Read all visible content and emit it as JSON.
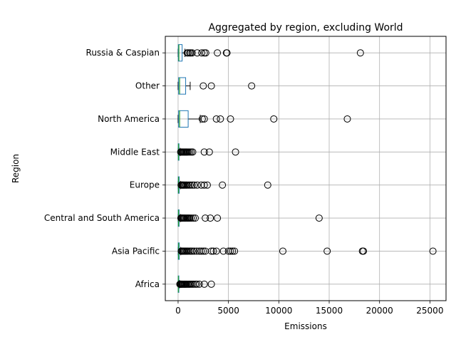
{
  "chart_data": {
    "type": "boxplot",
    "orientation": "horizontal",
    "title": "Aggregated by region, excluding World",
    "xlabel": "Emissions",
    "ylabel": "Region",
    "xlim": [
      -1270,
      26600
    ],
    "xticks": [
      0,
      5000,
      10000,
      15000,
      20000,
      25000
    ],
    "xtick_labels": [
      "0",
      "5000",
      "10000",
      "15000",
      "20000",
      "25000"
    ],
    "grid": true,
    "colors": {
      "box": "#1f77b4",
      "median": "#2ca02c",
      "whisker": "#000000",
      "grid": "#b0b0b0",
      "flier": "#000000"
    },
    "categories": [
      "Africa",
      "Asia Pacific",
      "Central and South America",
      "Europe",
      "Middle East",
      "North America",
      "Other",
      "Russia & Caspian"
    ],
    "series": [
      {
        "category": "Africa",
        "whislo": 0,
        "q1": 5,
        "median": 25,
        "q3": 60,
        "whishi": 140,
        "fliers": [
          180,
          230,
          290,
          350,
          420,
          500,
          580,
          650,
          720,
          800,
          900,
          1000,
          1100,
          1200,
          1350,
          1500,
          1700,
          1850,
          2100,
          2600,
          3300
        ]
      },
      {
        "category": "Asia Pacific",
        "whislo": 0,
        "q1": 10,
        "median": 50,
        "q3": 120,
        "whishi": 260,
        "fliers": [
          320,
          400,
          480,
          560,
          650,
          750,
          850,
          950,
          1100,
          1250,
          1400,
          1600,
          1850,
          2100,
          2300,
          2500,
          2700,
          3300,
          3500,
          3800,
          4500,
          5000,
          5200,
          5400,
          5600,
          10400,
          14800,
          18300,
          18400,
          25300
        ]
      },
      {
        "category": "Central and South America",
        "whislo": 0,
        "q1": 10,
        "median": 40,
        "q3": 100,
        "whishi": 220,
        "fliers": [
          280,
          350,
          420,
          500,
          580,
          650,
          750,
          850,
          950,
          1050,
          1150,
          1300,
          1500,
          1700,
          2700,
          3200,
          3900,
          14000
        ]
      },
      {
        "category": "Europe",
        "whislo": 0,
        "q1": 10,
        "median": 40,
        "q3": 110,
        "whishi": 240,
        "fliers": [
          300,
          380,
          450,
          520,
          600,
          700,
          800,
          900,
          1050,
          1200,
          1400,
          1600,
          1900,
          2300,
          2600,
          2900,
          4400,
          8900
        ]
      },
      {
        "category": "Middle East",
        "whislo": 0,
        "q1": 10,
        "median": 40,
        "q3": 90,
        "whishi": 200,
        "fliers": [
          260,
          330,
          420,
          500,
          580,
          660,
          740,
          820,
          900,
          1000,
          1150,
          1300,
          1450,
          2600,
          3100,
          5700
        ]
      },
      {
        "category": "North America",
        "whislo": 0,
        "q1": 50,
        "median": 150,
        "q3": 1000,
        "whishi": 2200,
        "fliers": [
          2400,
          2600,
          3800,
          4200,
          5200,
          9500,
          16800
        ]
      },
      {
        "category": "Other",
        "whislo": 0,
        "q1": 50,
        "median": 150,
        "q3": 750,
        "whishi": 1200,
        "fliers": [
          2500,
          3300,
          7300
        ]
      },
      {
        "category": "Russia & Caspian",
        "whislo": 0,
        "q1": 20,
        "median": 80,
        "q3": 400,
        "whishi": 680,
        "fliers": [
          900,
          1000,
          1150,
          1250,
          1400,
          1900,
          2350,
          2600,
          2750,
          3900,
          4800,
          4850,
          18100
        ]
      }
    ]
  }
}
